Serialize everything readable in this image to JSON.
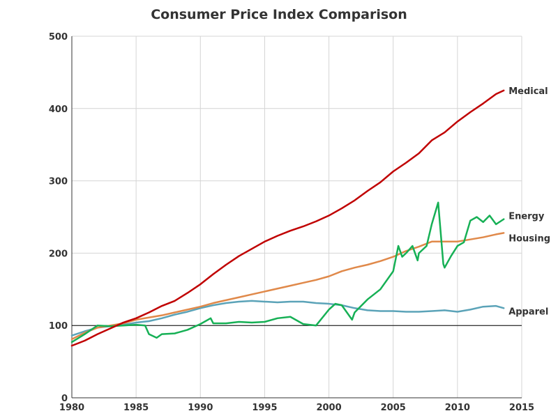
{
  "chart_data": {
    "type": "line",
    "title": "Consumer Price Index Comparison",
    "xlabel": "",
    "ylabel": "",
    "xlim": [
      1980,
      2015
    ],
    "ylim": [
      0,
      500
    ],
    "xticks": [
      1980,
      1985,
      1990,
      1995,
      2000,
      2005,
      2010,
      2015
    ],
    "yticks": [
      0,
      100,
      200,
      300,
      400,
      500
    ],
    "grid": true,
    "reference_line": 100,
    "series": [
      {
        "name": "Medical",
        "color": "#c00000",
        "x": [
          1980,
          1981,
          1982,
          1983,
          1984,
          1985,
          1986,
          1987,
          1988,
          1989,
          1990,
          1991,
          1992,
          1993,
          1994,
          1995,
          1996,
          1997,
          1998,
          1999,
          2000,
          2001,
          2002,
          2003,
          2004,
          2005,
          2006,
          2007,
          2008,
          2009,
          2010,
          2011,
          2012,
          2013,
          2013.6
        ],
        "y": [
          72,
          79,
          88,
          96,
          104,
          110,
          118,
          127,
          134,
          145,
          157,
          171,
          184,
          196,
          206,
          216,
          224,
          231,
          237,
          244,
          252,
          262,
          273,
          286,
          298,
          313,
          325,
          338,
          356,
          367,
          382,
          395,
          407,
          420,
          425
        ]
      },
      {
        "name": "Energy",
        "color": "#16b055",
        "x": [
          1980,
          1981,
          1982,
          1983,
          1984,
          1985,
          1985.7,
          1986,
          1986.6,
          1987,
          1988,
          1989,
          1990,
          1990.8,
          1991,
          1992,
          1993,
          1994,
          1995,
          1996,
          1997,
          1998,
          1999,
          2000,
          2000.5,
          2001,
          2001.8,
          2002,
          2003,
          2004,
          2005,
          2005.4,
          2005.7,
          2006,
          2006.5,
          2006.9,
          2007,
          2007.6,
          2008,
          2008.5,
          2008.9,
          2009,
          2009.5,
          2010,
          2010.5,
          2011,
          2011.5,
          2012,
          2012.5,
          2013,
          2013.6
        ],
        "y": [
          77,
          88,
          100,
          99,
          100,
          101,
          100,
          88,
          83,
          88,
          89,
          94,
          102,
          110,
          103,
          103,
          105,
          104,
          105,
          110,
          112,
          102,
          100,
          122,
          130,
          128,
          108,
          118,
          136,
          150,
          175,
          210,
          195,
          200,
          210,
          190,
          200,
          210,
          240,
          270,
          185,
          180,
          196,
          210,
          215,
          245,
          250,
          243,
          252,
          240,
          247
        ]
      },
      {
        "name": "Housing",
        "color": "#e0894a",
        "x": [
          1980,
          1981,
          1982,
          1983,
          1984,
          1985,
          1986,
          1987,
          1988,
          1989,
          1990,
          1991,
          1992,
          1993,
          1994,
          1995,
          1996,
          1997,
          1998,
          1999,
          2000,
          2001,
          2002,
          2003,
          2004,
          2005,
          2006,
          2007,
          2008,
          2009,
          2010,
          2011,
          2012,
          2013,
          2013.6
        ],
        "y": [
          81,
          90,
          97,
          100,
          103,
          108,
          111,
          114,
          118,
          122,
          126,
          131,
          135,
          139,
          143,
          147,
          151,
          155,
          159,
          163,
          168,
          175,
          180,
          184,
          189,
          195,
          203,
          209,
          216,
          216,
          216,
          219,
          222,
          226,
          228
        ]
      },
      {
        "name": "Apparel",
        "color": "#5ba3b8",
        "x": [
          1980,
          1981,
          1982,
          1983,
          1984,
          1985,
          1986,
          1987,
          1988,
          1989,
          1990,
          1991,
          1992,
          1993,
          1994,
          1995,
          1996,
          1997,
          1998,
          1999,
          2000,
          2001,
          2002,
          2003,
          2004,
          2005,
          2006,
          2007,
          2008,
          2009,
          2010,
          2011,
          2012,
          2013,
          2013.6
        ],
        "y": [
          86,
          92,
          97,
          99,
          101,
          104,
          106,
          110,
          115,
          119,
          124,
          128,
          131,
          133,
          134,
          133,
          132,
          133,
          133,
          131,
          130,
          128,
          124,
          121,
          120,
          120,
          119,
          119,
          120,
          121,
          119,
          122,
          126,
          127,
          124
        ]
      }
    ]
  }
}
